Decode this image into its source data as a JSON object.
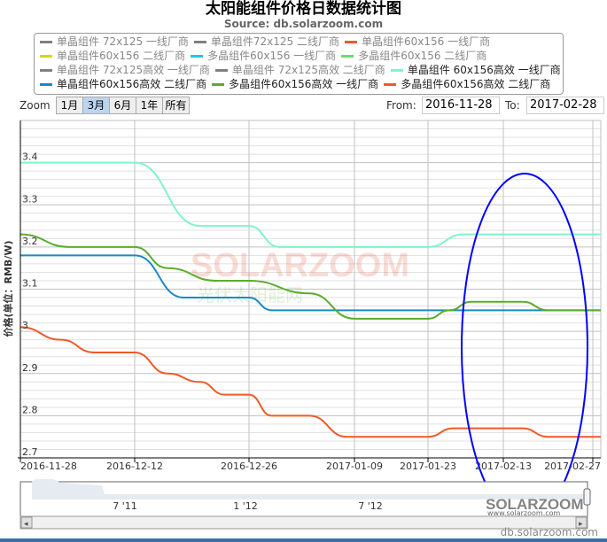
{
  "chart_data": {
    "type": "line",
    "title": "太阳能组件价格日数据统计图",
    "subtitle": "Source: db.solarzoom.com",
    "ylabel": "价格(单位：RMB/W)",
    "xlabel": "",
    "ylim": [
      2.7,
      3.5
    ],
    "yticks": [
      "2.7",
      "2.8",
      "2.9",
      "3",
      "3.1",
      "3.2",
      "3.3",
      "3.4"
    ],
    "xticks": [
      "2016-11-28",
      "2016-12-12",
      "2016-12-26",
      "2017-01-09",
      "2017-01-23",
      "2017-02-13",
      "2017-02-27"
    ],
    "xlim": [
      "2016-11-28",
      "2017-02-28"
    ],
    "grid": true,
    "legend_position": "top",
    "series": [
      {
        "name": "单晶组件 72x125 一线厂商",
        "color": "#808080",
        "visible": false,
        "points": []
      },
      {
        "name": "单晶组件72x125 二线厂商",
        "color": "#808080",
        "visible": false,
        "points": []
      },
      {
        "name": "单晶组件60x156 一线厂商",
        "color": "#f05a28",
        "visible": false,
        "points": []
      },
      {
        "name": "单晶组件60x156 二线厂商",
        "color": "#d9d900",
        "visible": false,
        "points": []
      },
      {
        "name": "多晶组件60x156 一线厂商",
        "color": "#1ec8e0",
        "visible": false,
        "points": []
      },
      {
        "name": "多晶组件60x156 二线厂商",
        "color": "#66dd66",
        "visible": false,
        "points": []
      },
      {
        "name": "单晶组件 72x125高效 一线厂商",
        "color": "#808080",
        "visible": false,
        "points": []
      },
      {
        "name": "单晶组件 72x125高效 二线厂商",
        "color": "#808080",
        "visible": false,
        "points": []
      },
      {
        "name": "单晶组件 60x156高效 一线厂商",
        "color": "#7df5c8",
        "visible": true,
        "points": [
          [
            "2016-11-28",
            3.4
          ],
          [
            "2016-12-12",
            3.4
          ],
          [
            "2016-12-20",
            3.25
          ],
          [
            "2016-12-26",
            3.25
          ],
          [
            "2016-12-30",
            3.2
          ],
          [
            "2017-01-23",
            3.2
          ],
          [
            "2017-02-02",
            3.23
          ],
          [
            "2017-02-28",
            3.23
          ]
        ]
      },
      {
        "name": "单晶组件60x156高效 二线厂商",
        "color": "#1a8ac8",
        "visible": true,
        "points": [
          [
            "2016-11-28",
            3.18
          ],
          [
            "2016-12-12",
            3.18
          ],
          [
            "2016-12-18",
            3.08
          ],
          [
            "2016-12-26",
            3.08
          ],
          [
            "2016-12-29",
            3.05
          ],
          [
            "2017-02-28",
            3.05
          ]
        ]
      },
      {
        "name": "多晶组件60x156高效 一线厂商",
        "color": "#5aac2e",
        "visible": true,
        "points": [
          [
            "2016-11-28",
            3.23
          ],
          [
            "2016-12-04",
            3.2
          ],
          [
            "2016-12-12",
            3.2
          ],
          [
            "2016-12-16",
            3.15
          ],
          [
            "2016-12-22",
            3.12
          ],
          [
            "2016-12-26",
            3.12
          ],
          [
            "2017-01-03",
            3.09
          ],
          [
            "2017-01-09",
            3.03
          ],
          [
            "2017-01-23",
            3.03
          ],
          [
            "2017-01-29",
            3.05
          ],
          [
            "2017-02-04",
            3.07
          ],
          [
            "2017-02-16",
            3.07
          ],
          [
            "2017-02-20",
            3.05
          ],
          [
            "2017-02-28",
            3.05
          ]
        ]
      },
      {
        "name": "多晶组件60x156高效 二线厂商",
        "color": "#f05a28",
        "visible": true,
        "points": [
          [
            "2016-11-28",
            3.01
          ],
          [
            "2016-12-03",
            2.98
          ],
          [
            "2016-12-07",
            2.95
          ],
          [
            "2016-12-12",
            2.95
          ],
          [
            "2016-12-16",
            2.9
          ],
          [
            "2016-12-20",
            2.88
          ],
          [
            "2016-12-23",
            2.85
          ],
          [
            "2016-12-26",
            2.85
          ],
          [
            "2016-12-29",
            2.8
          ],
          [
            "2017-01-03",
            2.8
          ],
          [
            "2017-01-08",
            2.75
          ],
          [
            "2017-01-23",
            2.75
          ],
          [
            "2017-01-30",
            2.77
          ],
          [
            "2017-02-16",
            2.77
          ],
          [
            "2017-02-20",
            2.75
          ],
          [
            "2017-02-28",
            2.75
          ]
        ]
      }
    ]
  },
  "range_selector": {
    "zoom_label": "Zoom",
    "buttons": [
      "1月",
      "3月",
      "6月",
      "1年",
      "所有"
    ],
    "selected": "3月",
    "from_label": "From:",
    "from_value": "2016-11-28",
    "to_label": "To:",
    "to_value": "2017-02-28"
  },
  "navigator": {
    "labels": [
      "7 '11",
      "1 '12",
      "7 '12"
    ]
  },
  "watermark": {
    "logo": "SOLARZOOM",
    "cn": "光伏太阳能网",
    "url": "www.solarzoom.com"
  },
  "annotation_color": "#0000ff",
  "footer": "db.solarzoom.com"
}
